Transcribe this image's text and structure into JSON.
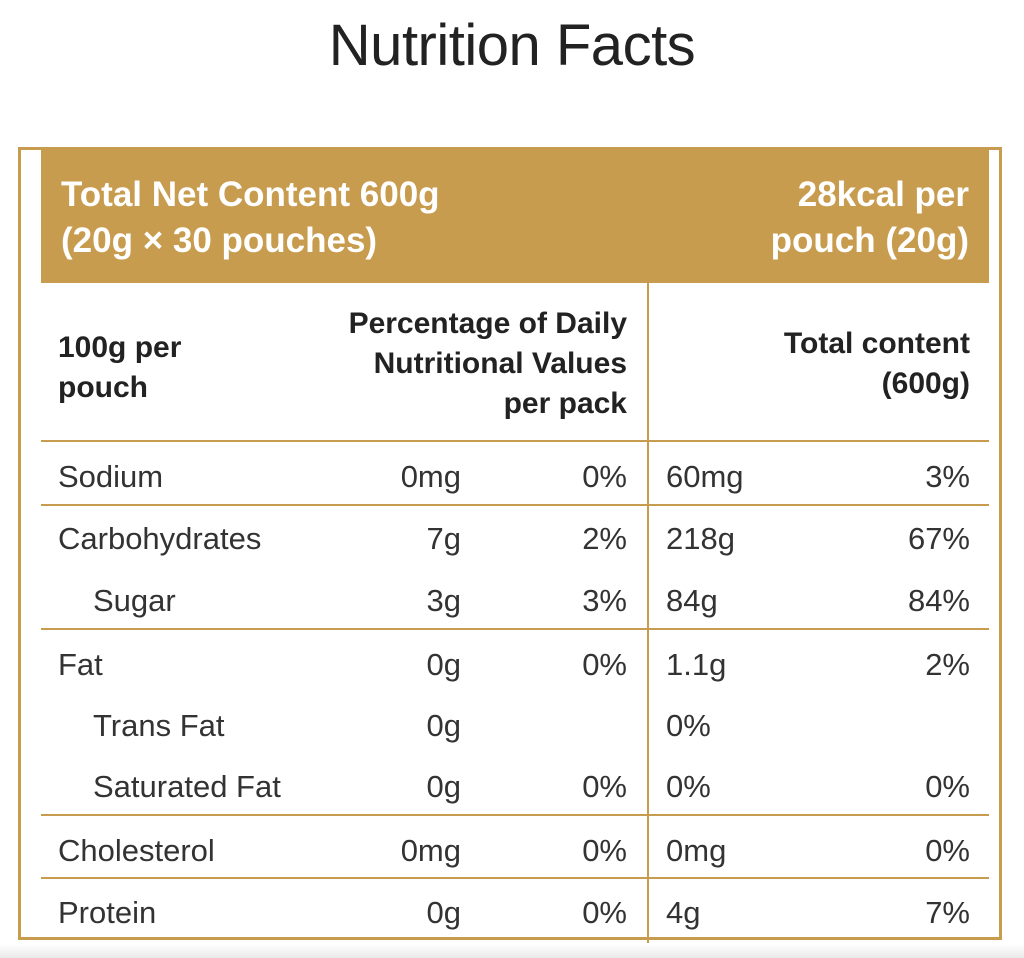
{
  "title": "Nutrition Facts",
  "header": {
    "left": "Total Net Content 600g\n(20g × 30 pouches)",
    "right": "28kcal per\npouch (20g)"
  },
  "columns": {
    "per_pouch": "100g per\npouch",
    "daily_values": "Percentage of Daily\nNutritional Values\nper pack",
    "total_content": "Total content\n(600g)"
  },
  "rows": [
    {
      "name": "Sodium",
      "amount": "0mg",
      "percent": "0%",
      "total_amount": "60mg",
      "total_percent": "3%",
      "sub": false
    },
    {
      "name": "Carbohydrates",
      "amount": "7g",
      "percent": "2%",
      "total_amount": "218g",
      "total_percent": "67%",
      "sub": false
    },
    {
      "name": "Sugar",
      "amount": "3g",
      "percent": "3%",
      "total_amount": "84g",
      "total_percent": "84%",
      "sub": true
    },
    {
      "name": "Fat",
      "amount": "0g",
      "percent": "0%",
      "total_amount": "1.1g",
      "total_percent": "2%",
      "sub": false
    },
    {
      "name": "Trans Fat",
      "amount": "0g",
      "percent": "",
      "total_amount": "0%",
      "total_percent": "",
      "sub": true
    },
    {
      "name": "Saturated Fat",
      "amount": "0g",
      "percent": "0%",
      "total_amount": "0%",
      "total_percent": "0%",
      "sub": true
    },
    {
      "name": "Cholesterol",
      "amount": "0mg",
      "percent": "0%",
      "total_amount": "0mg",
      "total_percent": "0%",
      "sub": false
    },
    {
      "name": "Protein",
      "amount": "0g",
      "percent": "0%",
      "total_amount": "4g",
      "total_percent": "7%",
      "sub": false
    }
  ],
  "colors": {
    "accent": "#c89c4e",
    "text": "#222222"
  }
}
